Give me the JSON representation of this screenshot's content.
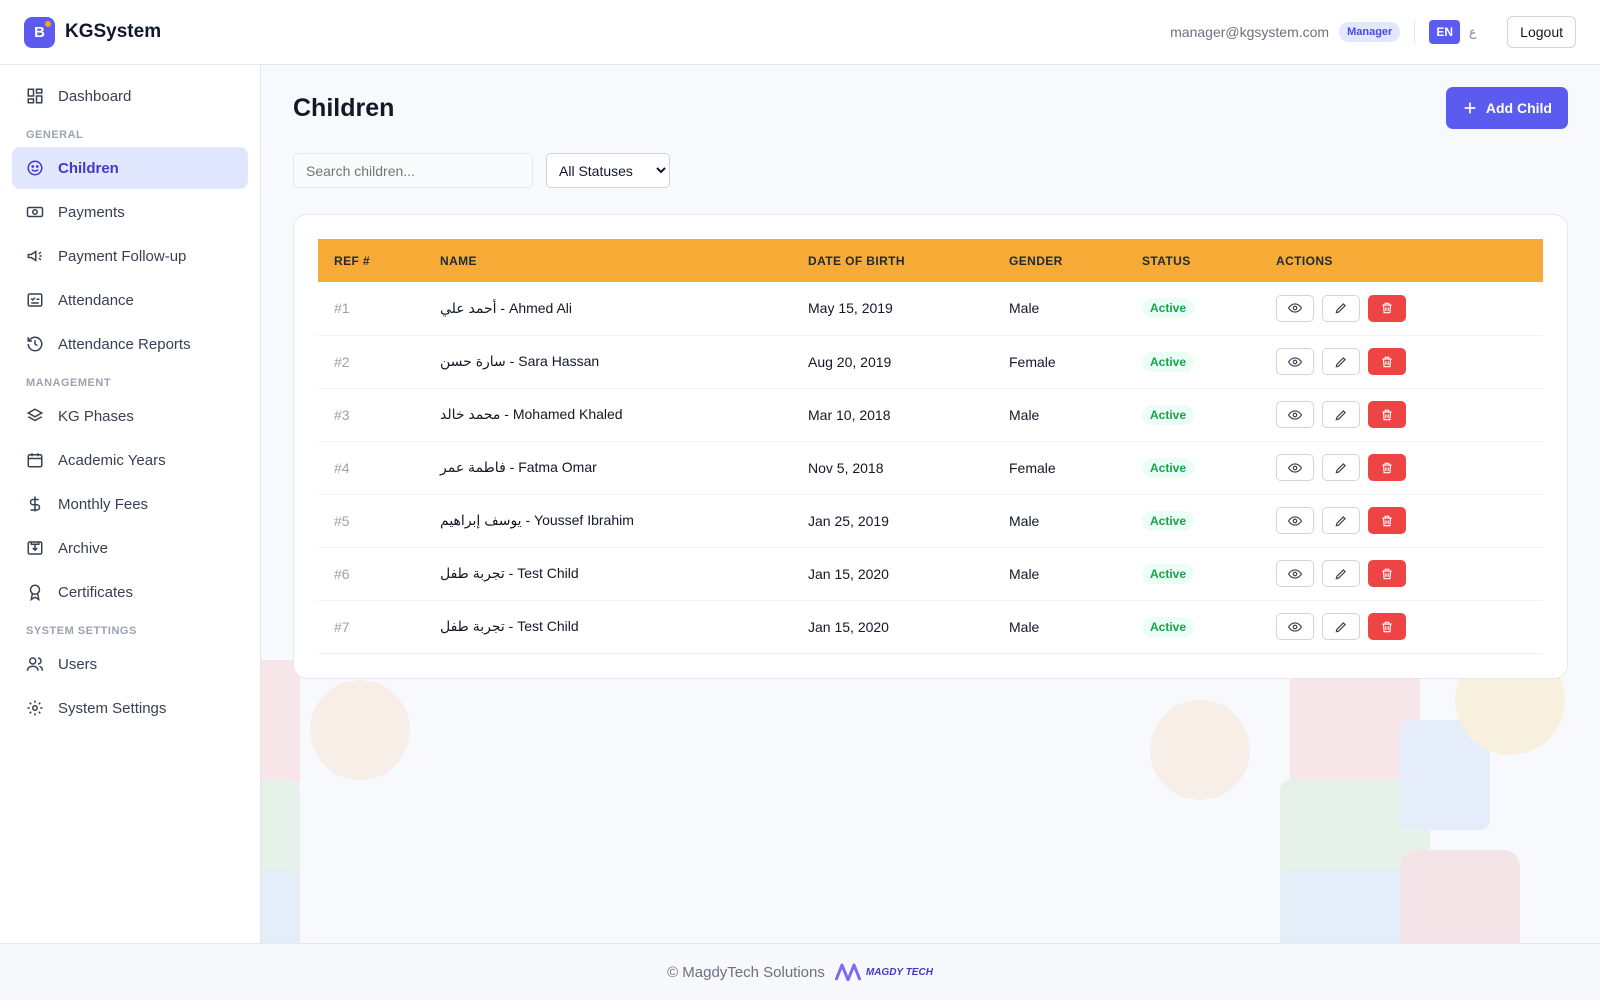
{
  "app": {
    "logo_letter": "B",
    "name": "KGSystem"
  },
  "header": {
    "email": "manager@kgsystem.com",
    "role": "Manager",
    "languages": [
      {
        "label": "EN",
        "active": true
      },
      {
        "label": "ع",
        "active": false
      }
    ],
    "logout_label": "Logout"
  },
  "sidebar": {
    "dashboard": "Dashboard",
    "sections": {
      "general": "GENERAL",
      "management": "MANAGEMENT",
      "system_settings": "SYSTEM SETTINGS"
    },
    "items": {
      "children": "Children",
      "payments": "Payments",
      "payment_followup": "Payment Follow-up",
      "attendance": "Attendance",
      "attendance_reports": "Attendance Reports",
      "kg_phases": "KG Phases",
      "academic_years": "Academic Years",
      "monthly_fees": "Monthly Fees",
      "archive": "Archive",
      "certificates": "Certificates",
      "users": "Users",
      "system_settings": "System Settings"
    },
    "active_item": "Children"
  },
  "main": {
    "title": "Children",
    "add_button": "Add Child",
    "search": {
      "placeholder": "Search children...",
      "value": ""
    },
    "status_filter": {
      "selected": "All Statuses"
    },
    "table": {
      "columns": [
        "REF #",
        "NAME",
        "DATE OF BIRTH",
        "GENDER",
        "STATUS",
        "ACTIONS"
      ],
      "rows": [
        {
          "ref": "#1",
          "name": "أحمد علي - Ahmed Ali",
          "dob": "May 15, 2019",
          "gender": "Male",
          "status": "Active"
        },
        {
          "ref": "#2",
          "name": "سارة حسن - Sara Hassan",
          "dob": "Aug 20, 2019",
          "gender": "Female",
          "status": "Active"
        },
        {
          "ref": "#3",
          "name": "محمد خالد - Mohamed Khaled",
          "dob": "Mar 10, 2018",
          "gender": "Male",
          "status": "Active"
        },
        {
          "ref": "#4",
          "name": "فاطمة عمر - Fatma Omar",
          "dob": "Nov 5, 2018",
          "gender": "Female",
          "status": "Active"
        },
        {
          "ref": "#5",
          "name": "يوسف إبراهيم - Youssef Ibrahim",
          "dob": "Jan 25, 2019",
          "gender": "Male",
          "status": "Active"
        },
        {
          "ref": "#6",
          "name": "تجربة طفل - Test Child",
          "dob": "Jan 15, 2020",
          "gender": "Male",
          "status": "Active"
        },
        {
          "ref": "#7",
          "name": "تجربة طفل - Test Child",
          "dob": "Jan 15, 2020",
          "gender": "Male",
          "status": "Active"
        }
      ]
    }
  },
  "footer": {
    "copyright": "© MagdyTech Solutions",
    "logo_text": "MAGDY TECH"
  },
  "colors": {
    "accent": "#5b5bf0",
    "table_header": "#f5ab35",
    "active_status": "#16a34a",
    "delete": "#ef4444"
  }
}
